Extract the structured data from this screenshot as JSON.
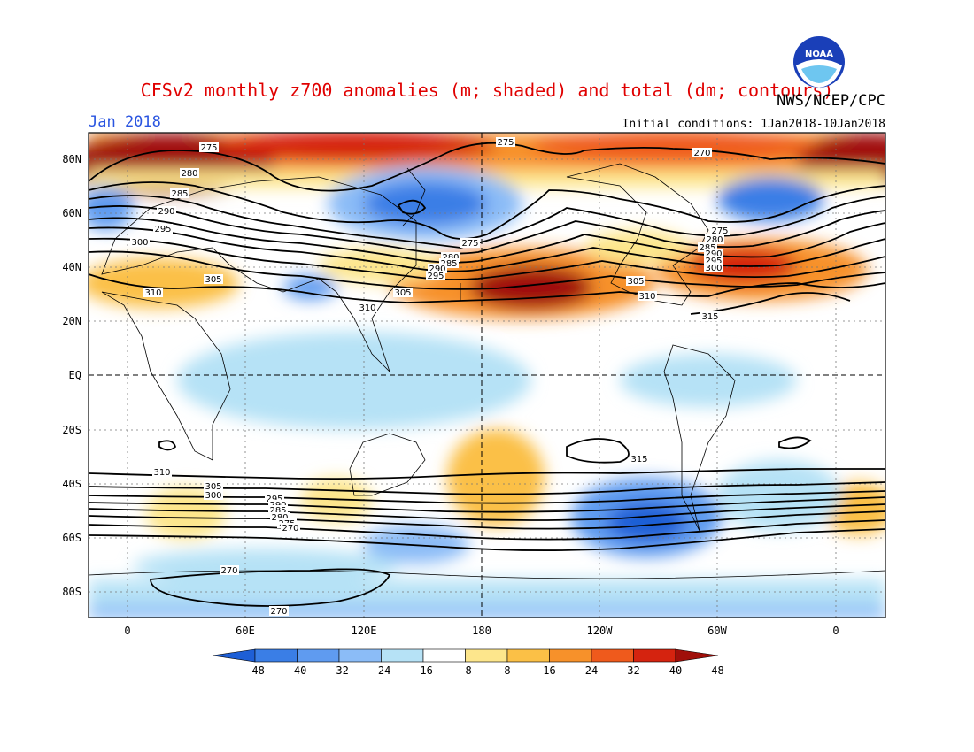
{
  "title": "CFSv2 monthly z700 anomalies (m; shaded) and total (dm; contours)",
  "agency": "NWS/NCEP/CPC",
  "logo_text": "NOAA",
  "period": "Jan 2018",
  "initial_conditions": "Initial conditions: 1Jan2018-10Jan2018",
  "lat_labels": [
    "80N",
    "60N",
    "40N",
    "20N",
    "EQ",
    "20S",
    "40S",
    "60S",
    "80S"
  ],
  "lon_labels": [
    "0",
    "60E",
    "120E",
    "180",
    "120W",
    "60W",
    "0"
  ],
  "colorbar": {
    "labels": [
      "-48",
      "-40",
      "-32",
      "-24",
      "-16",
      "-8",
      "8",
      "16",
      "24",
      "32",
      "40",
      "48"
    ],
    "colors": [
      "#1e5fd6",
      "#3a7ee6",
      "#5f9bf0",
      "#8bbcf7",
      "#b6e2f6",
      "#ffffff",
      "#fde68c",
      "#fbc046",
      "#f7912a",
      "#ef5a1c",
      "#d5230f",
      "#a00f0a"
    ]
  },
  "contour_labels": [
    {
      "text": "275",
      "pos": "north-west"
    },
    {
      "text": "280",
      "pos": "north-west"
    },
    {
      "text": "285",
      "pos": "north-west"
    },
    {
      "text": "290",
      "pos": "north-west"
    },
    {
      "text": "295",
      "pos": "north-west"
    },
    {
      "text": "300",
      "pos": "west"
    },
    {
      "text": "305",
      "pos": "west"
    },
    {
      "text": "310",
      "pos": "west"
    },
    {
      "text": "275",
      "pos": "north-central"
    },
    {
      "text": "275",
      "pos": "pacific"
    },
    {
      "text": "280",
      "pos": "pacific"
    },
    {
      "text": "285",
      "pos": "pacific"
    },
    {
      "text": "290",
      "pos": "pacific"
    },
    {
      "text": "295",
      "pos": "pacific"
    },
    {
      "text": "305",
      "pos": "pacific"
    },
    {
      "text": "310",
      "pos": "asia"
    },
    {
      "text": "270",
      "pos": "north-east"
    },
    {
      "text": "275",
      "pos": "atlantic"
    },
    {
      "text": "280",
      "pos": "atlantic"
    },
    {
      "text": "285",
      "pos": "atlantic"
    },
    {
      "text": "290",
      "pos": "atlantic"
    },
    {
      "text": "295",
      "pos": "atlantic"
    },
    {
      "text": "300",
      "pos": "atlantic"
    },
    {
      "text": "305",
      "pos": "america"
    },
    {
      "text": "310",
      "pos": "america"
    },
    {
      "text": "315",
      "pos": "america"
    },
    {
      "text": "315",
      "pos": "south-pacific"
    },
    {
      "text": "310",
      "pos": "south"
    },
    {
      "text": "305",
      "pos": "south"
    },
    {
      "text": "300",
      "pos": "south"
    },
    {
      "text": "295",
      "pos": "south"
    },
    {
      "text": "290",
      "pos": "south"
    },
    {
      "text": "285",
      "pos": "south"
    },
    {
      "text": "280",
      "pos": "south"
    },
    {
      "text": "275",
      "pos": "south"
    },
    {
      "text": "270",
      "pos": "south"
    },
    {
      "text": "270",
      "pos": "antarctic"
    },
    {
      "text": "270",
      "pos": "antarctic-bottom"
    }
  ]
}
